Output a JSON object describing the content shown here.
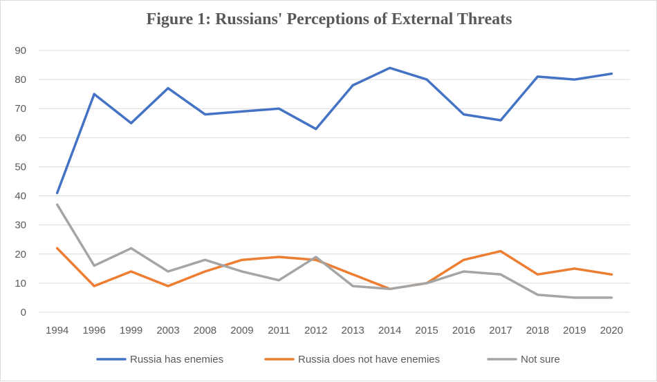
{
  "chart_data": {
    "type": "line",
    "title": "Figure 1: Russians' Perceptions of External Threats",
    "categories": [
      "1994",
      "1996",
      "1999",
      "2003",
      "2008",
      "2009",
      "2011",
      "2012",
      "2013",
      "2014",
      "2015",
      "2016",
      "2017",
      "2018",
      "2019",
      "2020"
    ],
    "series": [
      {
        "name": "Russia has enemies",
        "color": "#4472c4",
        "values": [
          41,
          75,
          65,
          77,
          68,
          69,
          70,
          63,
          78,
          84,
          80,
          68,
          66,
          81,
          80,
          82
        ]
      },
      {
        "name": "Russia does not have enemies",
        "color": "#ed7d31",
        "values": [
          22,
          9,
          14,
          9,
          14,
          18,
          19,
          18,
          13,
          8,
          10,
          18,
          21,
          13,
          15,
          13
        ]
      },
      {
        "name": "Not sure",
        "color": "#a5a5a5",
        "values": [
          37,
          16,
          22,
          14,
          18,
          14,
          11,
          19,
          9,
          8,
          10,
          14,
          13,
          6,
          5,
          5
        ]
      }
    ],
    "ylim": [
      0,
      90
    ],
    "yticks": [
      0,
      10,
      20,
      30,
      40,
      50,
      60,
      70,
      80,
      90
    ],
    "grid": true,
    "legend": "bottom",
    "xlabel": "",
    "ylabel": ""
  }
}
